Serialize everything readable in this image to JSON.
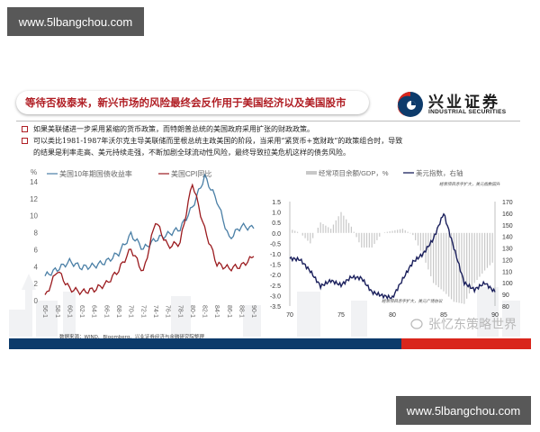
{
  "watermark": {
    "top": "www.5lbangchou.com",
    "bottom": "www.5lbangchou.com"
  },
  "slide": {
    "title": "等待否极泰来，新兴市场的风险最终会反作用于美国经济以及美国股市",
    "logo": {
      "cn": "兴业证券",
      "en": "INDUSTRIAL SECURITIES",
      "colors": {
        "red": "#d9261c",
        "blue": "#0d3b6b"
      }
    },
    "bullets": [
      {
        "text": "如果美联储进一步采用紧缩的货币政策，而特朗普总统的美国政府采用扩张的财政政策。"
      },
      {
        "text": "可以类比1981-1987年沃尔克主导美联储而里根总统主政美国的阶段，当采用“紧货币+宽财政”的政策组合时，导致",
        "cont": "的结果是利率走高、美元持续走强，不断加剧全球流动性风险，最终导致拉美危机这样的债务风险。"
      }
    ],
    "source": "数据来源：WIND、Bloomberg、兴业证券经济与金融研究院整理",
    "wechat_watermark": "张忆东策略世界",
    "footer_colors": {
      "blue": "#0d3b6b",
      "red": "#d9261c"
    }
  },
  "chart_data": [
    {
      "type": "line",
      "title": "",
      "ylabel": "%",
      "ylim": [
        0,
        14
      ],
      "yticks": [
        0,
        2,
        4,
        6,
        8,
        10,
        12,
        14
      ],
      "categories": [
        "56-1",
        "58-1",
        "60-1",
        "62-1",
        "64-1",
        "66-1",
        "68-1",
        "70-1",
        "72-1",
        "74-1",
        "76-1",
        "78-1",
        "80-1",
        "82-1",
        "84-1",
        "86-1",
        "88-1",
        "90-1"
      ],
      "legend_position": "top",
      "series": [
        {
          "name": "美国10年期国债收益率",
          "color": "#4a7fa6",
          "values": [
            2.9,
            3.7,
            4.6,
            3.9,
            4.1,
            4.6,
            5.6,
            7.8,
            6.1,
            7.2,
            7.8,
            8.5,
            11.0,
            14.6,
            11.8,
            7.3,
            8.8,
            8.5
          ]
        },
        {
          "name": "美国CPI同比",
          "color": "#9b1b1f",
          "values": [
            0.4,
            3.6,
            1.4,
            1.0,
            1.3,
            2.0,
            3.6,
            6.1,
            3.3,
            9.4,
            6.4,
            6.8,
            13.9,
            8.4,
            4.3,
            3.8,
            4.1,
            5.2
          ]
        }
      ]
    },
    {
      "type": "bar+line",
      "title": "",
      "annotations": [
        "经常项目赤字扩大，美元指数回升",
        "经常项目赤字扩大，美元广场协议"
      ],
      "x_ticks": [
        "70",
        "75",
        "80",
        "85",
        "90"
      ],
      "legend_position": "top",
      "left_axis": {
        "ylim": [
          -3.5,
          1.5
        ],
        "ticks": [
          "1.5",
          "1.0",
          "0.5",
          "0.0",
          "-0.5",
          "-1.0",
          "-1.5",
          "-2.0",
          "-2.5",
          "-3.0",
          "-3.5"
        ]
      },
      "right_axis": {
        "ylim": [
          80,
          170
        ],
        "ticks": [
          "170",
          "160",
          "150",
          "140",
          "130",
          "120",
          "110",
          "100",
          "90",
          "80"
        ]
      },
      "series": [
        {
          "name": "经常项目余额/GDP，%",
          "type": "bar",
          "axis": "left",
          "color": "#c8c8c8",
          "x": [
            70,
            71,
            72,
            73,
            74,
            75,
            76,
            77,
            78,
            79,
            80,
            81,
            82,
            83,
            84,
            85,
            86,
            87,
            88,
            89,
            90
          ],
          "values": [
            0.2,
            0.0,
            -0.5,
            0.5,
            0.2,
            1.0,
            0.3,
            -0.7,
            -0.7,
            0.0,
            0.1,
            0.2,
            -0.1,
            -1.1,
            -2.4,
            -2.8,
            -3.3,
            -3.4,
            -2.4,
            -1.8,
            -1.3
          ]
        },
        {
          "name": "美元指数，右轴",
          "type": "line",
          "axis": "right",
          "color": "#1a1f5c",
          "x": [
            70,
            71,
            72,
            73,
            74,
            75,
            76,
            77,
            78,
            79,
            80,
            81,
            82,
            83,
            84,
            85,
            86,
            87,
            88,
            89,
            90
          ],
          "values": [
            121,
            120,
            110,
            97,
            102,
            98,
            105,
            104,
            92,
            89,
            87,
            103,
            118,
            125,
            138,
            160,
            130,
            100,
            94,
            100,
            92
          ]
        }
      ]
    }
  ]
}
